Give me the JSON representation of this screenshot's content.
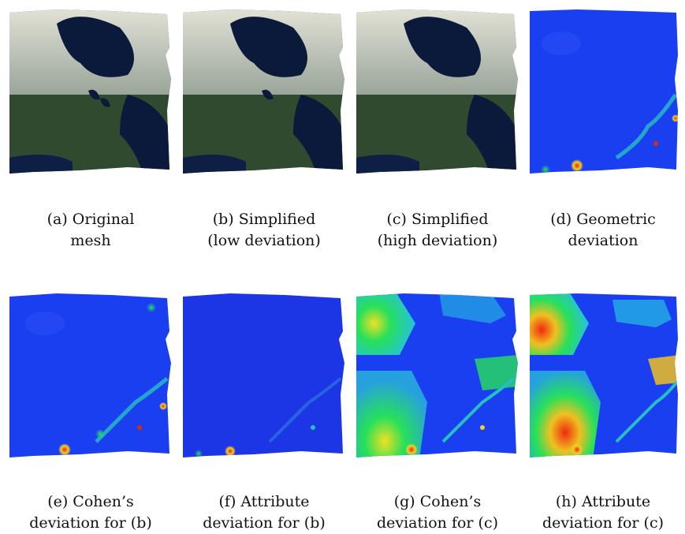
{
  "figure": {
    "panels": [
      {
        "id": "a",
        "kind": "map",
        "caption": [
          "(a) Original",
          "mesh"
        ]
      },
      {
        "id": "b",
        "kind": "map",
        "caption": [
          "(b) Simplified",
          "(low deviation)"
        ]
      },
      {
        "id": "c",
        "kind": "map",
        "caption": [
          "(c) Simplified",
          "(high deviation)"
        ]
      },
      {
        "id": "d",
        "kind": "heat-fine",
        "caption": [
          "(d) Geometric",
          "deviation"
        ]
      },
      {
        "id": "e",
        "kind": "heat-fine",
        "caption": [
          "(e) Cohen’s",
          "deviation for (b)"
        ]
      },
      {
        "id": "f",
        "kind": "heat-smooth",
        "caption": [
          "(f) Attribute",
          "deviation for (b)"
        ]
      },
      {
        "id": "g",
        "kind": "heat-coarse-1",
        "caption": [
          "(g) Cohen’s",
          "deviation for (c)"
        ]
      },
      {
        "id": "h",
        "kind": "heat-coarse-2",
        "caption": [
          "(h) Attribute",
          "deviation for (c)"
        ]
      }
    ],
    "colors": {
      "ocean": "#0b1a3a",
      "land": "#3d5a3a",
      "snow": "#d9dbd2",
      "heat_low": "#1a3ff0",
      "heat_mid": "#27e05a",
      "heat_high": "#f02a10"
    }
  }
}
